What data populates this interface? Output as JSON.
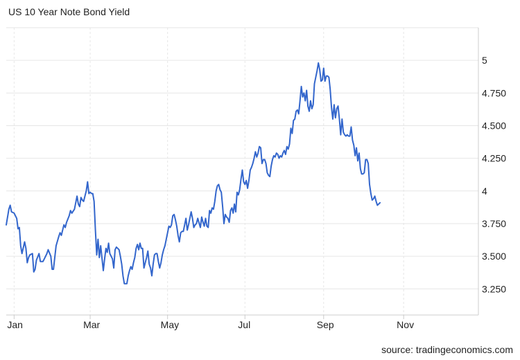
{
  "title": "US 10 Year Note Bond Yield",
  "source": "source: tradingeconomics.com",
  "colors": {
    "line": "#3366cc",
    "grid": "#e6e6e6",
    "axis": "#cccccc",
    "text": "#222222"
  },
  "chart_data": {
    "type": "line",
    "title": "US 10 Year Note Bond Yield",
    "xlabel": "",
    "ylabel": "",
    "ylim": [
      3.05,
      5.25
    ],
    "xlim_days": [
      0,
      360
    ],
    "yticks": [
      3.25,
      3.5,
      3.75,
      4,
      4.25,
      4.5,
      4.75,
      5
    ],
    "ytick_labels": [
      "3.250",
      "3.500",
      "3.750",
      "4",
      "4.250",
      "4.500",
      "4.750",
      "5"
    ],
    "xticks": [
      {
        "label": "Jan",
        "day": 6
      },
      {
        "label": "Mar",
        "day": 64
      },
      {
        "label": "May",
        "day": 123
      },
      {
        "label": "Jul",
        "day": 182
      },
      {
        "label": "Sep",
        "day": 242
      },
      {
        "label": "Nov",
        "day": 303
      }
    ],
    "grid": true,
    "legend": "none",
    "series": [
      {
        "values": [
          [
            0,
            3.74
          ],
          [
            2,
            3.86
          ],
          [
            3,
            3.89
          ],
          [
            4,
            3.84
          ],
          [
            6,
            3.83
          ],
          [
            8,
            3.79
          ],
          [
            9,
            3.71
          ],
          [
            10,
            3.72
          ],
          [
            11,
            3.58
          ],
          [
            12,
            3.52
          ],
          [
            14,
            3.61
          ],
          [
            15,
            3.56
          ],
          [
            16,
            3.45
          ],
          [
            17,
            3.49
          ],
          [
            18,
            3.51
          ],
          [
            20,
            3.52
          ],
          [
            21,
            3.38
          ],
          [
            22,
            3.4
          ],
          [
            23,
            3.47
          ],
          [
            25,
            3.52
          ],
          [
            26,
            3.46
          ],
          [
            28,
            3.46
          ],
          [
            29,
            3.48
          ],
          [
            31,
            3.52
          ],
          [
            32,
            3.55
          ],
          [
            34,
            3.5
          ],
          [
            35,
            3.4
          ],
          [
            36,
            3.4
          ],
          [
            38,
            3.58
          ],
          [
            40,
            3.65
          ],
          [
            41,
            3.68
          ],
          [
            42,
            3.66
          ],
          [
            44,
            3.74
          ],
          [
            45,
            3.72
          ],
          [
            46,
            3.76
          ],
          [
            48,
            3.81
          ],
          [
            49,
            3.85
          ],
          [
            50,
            3.83
          ],
          [
            52,
            3.86
          ],
          [
            54,
            3.96
          ],
          [
            55,
            3.9
          ],
          [
            56,
            3.88
          ],
          [
            57,
            3.95
          ],
          [
            58,
            3.93
          ],
          [
            59,
            3.92
          ],
          [
            61,
            4.0
          ],
          [
            62,
            4.07
          ],
          [
            63,
            3.98
          ],
          [
            64,
            3.99
          ],
          [
            65,
            3.98
          ],
          [
            66,
            3.98
          ],
          [
            67,
            3.92
          ],
          [
            68,
            3.7
          ],
          [
            69,
            3.51
          ],
          [
            70,
            3.63
          ],
          [
            71,
            3.49
          ],
          [
            72,
            3.58
          ],
          [
            74,
            3.39
          ],
          [
            75,
            3.48
          ],
          [
            76,
            3.56
          ],
          [
            77,
            3.53
          ],
          [
            78,
            3.6
          ],
          [
            79,
            3.52
          ],
          [
            81,
            3.48
          ],
          [
            82,
            3.41
          ],
          [
            83,
            3.55
          ],
          [
            84,
            3.57
          ],
          [
            85,
            3.56
          ],
          [
            86,
            3.55
          ],
          [
            87,
            3.5
          ],
          [
            88,
            3.44
          ],
          [
            89,
            3.35
          ],
          [
            90,
            3.29
          ],
          [
            92,
            3.29
          ],
          [
            93,
            3.35
          ],
          [
            94,
            3.39
          ],
          [
            95,
            3.42
          ],
          [
            96,
            3.4
          ],
          [
            97,
            3.45
          ],
          [
            98,
            3.49
          ],
          [
            99,
            3.56
          ],
          [
            100,
            3.59
          ],
          [
            101,
            3.55
          ],
          [
            102,
            3.6
          ],
          [
            103,
            3.56
          ],
          [
            104,
            3.56
          ],
          [
            105,
            3.41
          ],
          [
            106,
            3.45
          ],
          [
            107,
            3.49
          ],
          [
            108,
            3.54
          ],
          [
            109,
            3.44
          ],
          [
            110,
            3.41
          ],
          [
            111,
            3.35
          ],
          [
            112,
            3.44
          ],
          [
            113,
            3.51
          ],
          [
            114,
            3.52
          ],
          [
            115,
            3.52
          ],
          [
            116,
            3.46
          ],
          [
            117,
            3.41
          ],
          [
            118,
            3.45
          ],
          [
            119,
            3.51
          ],
          [
            120,
            3.55
          ],
          [
            121,
            3.58
          ],
          [
            122,
            3.63
          ],
          [
            123,
            3.68
          ],
          [
            124,
            3.73
          ],
          [
            125,
            3.72
          ],
          [
            126,
            3.74
          ],
          [
            127,
            3.81
          ],
          [
            128,
            3.82
          ],
          [
            129,
            3.78
          ],
          [
            130,
            3.73
          ],
          [
            131,
            3.66
          ],
          [
            132,
            3.61
          ],
          [
            133,
            3.68
          ],
          [
            134,
            3.69
          ],
          [
            135,
            3.69
          ],
          [
            136,
            3.74
          ],
          [
            137,
            3.79
          ],
          [
            138,
            3.7
          ],
          [
            139,
            3.74
          ],
          [
            141,
            3.84
          ],
          [
            142,
            3.79
          ],
          [
            143,
            3.72
          ],
          [
            144,
            3.74
          ],
          [
            145,
            3.75
          ],
          [
            146,
            3.79
          ],
          [
            148,
            3.72
          ],
          [
            149,
            3.8
          ],
          [
            150,
            3.76
          ],
          [
            151,
            3.73
          ],
          [
            152,
            3.79
          ],
          [
            153,
            3.73
          ],
          [
            154,
            3.72
          ],
          [
            155,
            3.85
          ],
          [
            156,
            3.83
          ],
          [
            157,
            3.87
          ],
          [
            158,
            3.86
          ],
          [
            159,
            3.92
          ],
          [
            160,
            4.0
          ],
          [
            161,
            4.04
          ],
          [
            162,
            4.05
          ],
          [
            163,
            4.01
          ],
          [
            164,
            3.99
          ],
          [
            165,
            3.88
          ],
          [
            166,
            3.75
          ],
          [
            167,
            3.82
          ],
          [
            168,
            3.8
          ],
          [
            169,
            3.79
          ],
          [
            170,
            3.76
          ],
          [
            171,
            3.85
          ],
          [
            172,
            3.87
          ],
          [
            173,
            3.83
          ],
          [
            174,
            3.9
          ],
          [
            175,
            3.84
          ],
          [
            176,
            3.99
          ],
          [
            177,
            3.97
          ],
          [
            178,
            4.01
          ],
          [
            179,
            4.09
          ],
          [
            180,
            4.16
          ],
          [
            181,
            4.07
          ],
          [
            182,
            4.05
          ],
          [
            183,
            4.08
          ],
          [
            184,
            4.02
          ],
          [
            185,
            4.08
          ],
          [
            186,
            4.16
          ],
          [
            187,
            4.18
          ],
          [
            188,
            4.21
          ],
          [
            189,
            4.25
          ],
          [
            190,
            4.3
          ],
          [
            191,
            4.26
          ],
          [
            192,
            4.29
          ],
          [
            193,
            4.34
          ],
          [
            194,
            4.33
          ],
          [
            195,
            4.21
          ],
          [
            196,
            4.24
          ],
          [
            197,
            4.24
          ],
          [
            198,
            4.21
          ],
          [
            199,
            4.14
          ],
          [
            200,
            4.12
          ],
          [
            201,
            4.11
          ],
          [
            202,
            4.19
          ],
          [
            203,
            4.24
          ],
          [
            204,
            4.27
          ],
          [
            205,
            4.26
          ],
          [
            206,
            4.29
          ],
          [
            207,
            4.28
          ],
          [
            208,
            4.25
          ],
          [
            209,
            4.27
          ],
          [
            210,
            4.26
          ],
          [
            211,
            4.29
          ],
          [
            212,
            4.31
          ],
          [
            213,
            4.28
          ],
          [
            214,
            4.34
          ],
          [
            215,
            4.32
          ],
          [
            216,
            4.36
          ],
          [
            217,
            4.48
          ],
          [
            218,
            4.44
          ],
          [
            219,
            4.54
          ],
          [
            220,
            4.55
          ],
          [
            221,
            4.61
          ],
          [
            222,
            4.62
          ],
          [
            223,
            4.59
          ],
          [
            224,
            4.69
          ],
          [
            225,
            4.8
          ],
          [
            226,
            4.72
          ],
          [
            227,
            4.75
          ],
          [
            228,
            4.69
          ],
          [
            229,
            4.77
          ],
          [
            230,
            4.65
          ],
          [
            231,
            4.61
          ],
          [
            232,
            4.69
          ],
          [
            233,
            4.63
          ],
          [
            234,
            4.66
          ],
          [
            235,
            4.82
          ],
          [
            236,
            4.87
          ],
          [
            237,
            4.92
          ],
          [
            238,
            4.98
          ],
          [
            239,
            4.93
          ],
          [
            240,
            4.84
          ],
          [
            241,
            4.85
          ],
          [
            242,
            4.94
          ],
          [
            243,
            4.84
          ],
          [
            244,
            4.88
          ],
          [
            245,
            4.88
          ],
          [
            246,
            4.87
          ],
          [
            247,
            4.78
          ],
          [
            248,
            4.64
          ],
          [
            249,
            4.55
          ],
          [
            250,
            4.66
          ],
          [
            251,
            4.56
          ],
          [
            252,
            4.63
          ],
          [
            253,
            4.65
          ],
          [
            254,
            4.55
          ],
          [
            255,
            4.43
          ],
          [
            256,
            4.55
          ],
          [
            257,
            4.45
          ],
          [
            258,
            4.43
          ],
          [
            259,
            4.42
          ],
          [
            260,
            4.43
          ],
          [
            261,
            4.42
          ],
          [
            262,
            4.42
          ],
          [
            263,
            4.49
          ],
          [
            264,
            4.39
          ],
          [
            265,
            4.35
          ],
          [
            266,
            4.27
          ],
          [
            267,
            4.33
          ],
          [
            268,
            4.23
          ],
          [
            269,
            4.29
          ],
          [
            270,
            4.17
          ],
          [
            271,
            4.13
          ],
          [
            272,
            4.13
          ],
          [
            273,
            4.14
          ],
          [
            274,
            4.24
          ],
          [
            275,
            4.24
          ],
          [
            276,
            4.21
          ],
          [
            277,
            4.05
          ],
          [
            278,
            3.98
          ],
          [
            279,
            3.93
          ],
          [
            280,
            3.94
          ],
          [
            281,
            3.96
          ],
          [
            282,
            3.92
          ],
          [
            283,
            3.89
          ],
          [
            284,
            3.9
          ],
          [
            285,
            3.91
          ]
        ]
      }
    ]
  }
}
